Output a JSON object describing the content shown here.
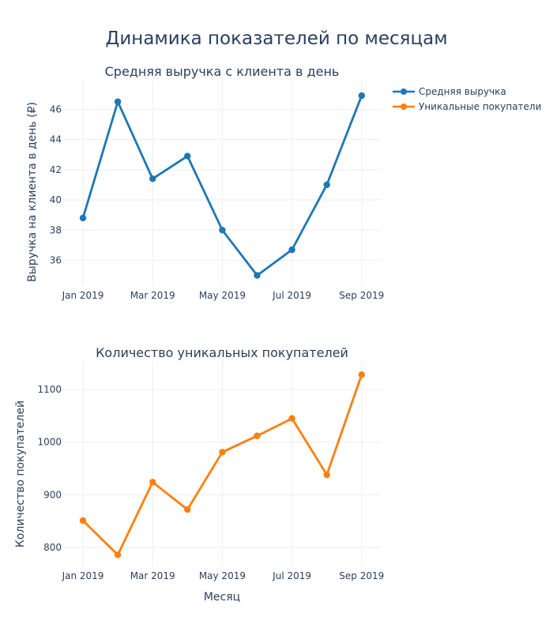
{
  "title": "Динамика показателей по месяцам",
  "legend": {
    "items": [
      {
        "label": "Средняя выручка",
        "color": "#1f77b4"
      },
      {
        "label": "Уникальные покупатели",
        "color": "#ff7f0e"
      }
    ]
  },
  "chart_data": [
    {
      "type": "line",
      "title": "Средняя выручка с клиента в день",
      "xlabel": "",
      "ylabel": "Выручка на клиента в день (₽)",
      "x": [
        "2019-01",
        "2019-02",
        "2019-03",
        "2019-04",
        "2019-05",
        "2019-06",
        "2019-07",
        "2019-08",
        "2019-09"
      ],
      "x_tick_labels": [
        "Jan 2019",
        "Mar 2019",
        "May 2019",
        "Jul 2019",
        "Sep 2019"
      ],
      "y_ticks": [
        36,
        38,
        40,
        42,
        44,
        46
      ],
      "ylim": [
        34.3,
        47.9
      ],
      "grid": true,
      "series": [
        {
          "name": "Средняя выручка",
          "color": "#1f77b4",
          "values": [
            38.8,
            46.5,
            41.4,
            42.9,
            38.0,
            35.0,
            36.7,
            41.0,
            46.9
          ]
        }
      ]
    },
    {
      "type": "line",
      "title": "Количество уникальных покупателей",
      "xlabel": "Месяц",
      "ylabel": "Количество покупателей",
      "x": [
        "2019-01",
        "2019-02",
        "2019-03",
        "2019-04",
        "2019-05",
        "2019-06",
        "2019-07",
        "2019-08",
        "2019-09"
      ],
      "x_tick_labels": [
        "Jan 2019",
        "Mar 2019",
        "May 2019",
        "Jul 2019",
        "Sep 2019"
      ],
      "y_ticks": [
        800,
        900,
        1000,
        1100
      ],
      "ylim": [
        764,
        1154
      ],
      "grid": true,
      "series": [
        {
          "name": "Уникальные покупатели",
          "color": "#ff7f0e",
          "values": [
            851,
            786,
            924,
            872,
            981,
            1012,
            1045,
            938,
            1128
          ]
        }
      ]
    }
  ]
}
